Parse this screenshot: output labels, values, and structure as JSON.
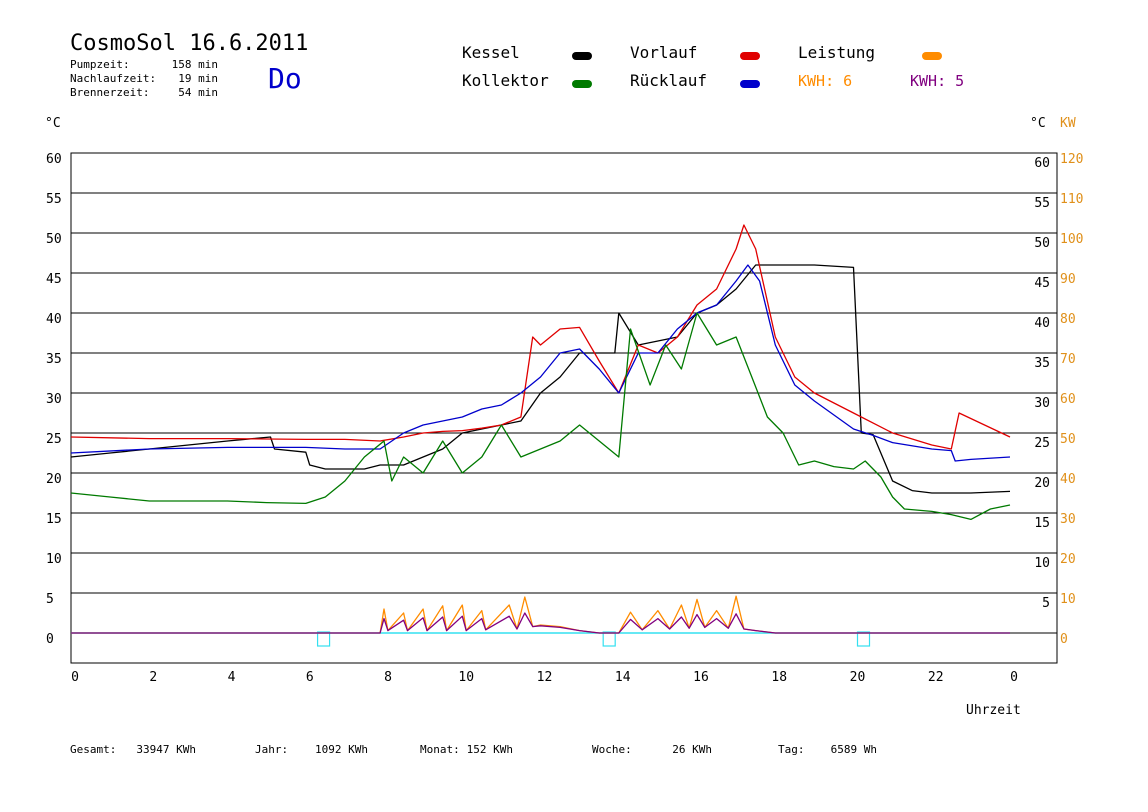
{
  "header": {
    "title": "CosmoSol 16.6.2011",
    "stats": [
      {
        "label": "Pumpzeit:",
        "value": "158 min"
      },
      {
        "label": "Nachlaufzeit:",
        "value": "19 min"
      },
      {
        "label": "Brennerzeit:",
        "value": "54 min"
      }
    ],
    "weekday": "Do"
  },
  "legend": {
    "kessel": "Kessel",
    "kollektor": "Kollektor",
    "vorlauf": "Vorlauf",
    "ruecklauf": "Rücklauf",
    "leistung": "Leistung",
    "kwh1": "KWH: 6",
    "kwh2": "KWH: 5"
  },
  "colors": {
    "kessel": "#000000",
    "kollektor": "#007a00",
    "vorlauf": "#e00000",
    "ruecklauf": "#0000cc",
    "leistung": "#ff8c00",
    "kwh2": "#800080",
    "baseline": "#33e0f0",
    "right_axis": "#e0901a",
    "weekday": "#0000cc"
  },
  "footer": [
    {
      "label": "Gesamt:",
      "value": "33947 KWh"
    },
    {
      "label": "Jahr:",
      "value": "1092 KWh"
    },
    {
      "label": "Monat:",
      "value": "152 KWh"
    },
    {
      "label": "Woche:",
      "value": "26 KWh"
    },
    {
      "label": "Tag:",
      "value": "6589 Wh"
    }
  ],
  "chart_data": {
    "type": "line",
    "y_unit_left": "°C",
    "y_unit_right_temp": "°C",
    "y_unit_right_power": "KW",
    "xlabel": "Uhrzeit",
    "x_ticks": [
      "0",
      "2",
      "4",
      "6",
      "8",
      "10",
      "12",
      "14",
      "16",
      "18",
      "20",
      "22",
      "0"
    ],
    "y_ticks_left": [
      0,
      5,
      10,
      15,
      20,
      25,
      30,
      35,
      40,
      45,
      50,
      55,
      60
    ],
    "y_ticks_right_temp": [
      5,
      10,
      15,
      20,
      25,
      30,
      35,
      40,
      45,
      50,
      55,
      60
    ],
    "y_ticks_right_power": [
      0,
      10,
      20,
      30,
      40,
      50,
      60,
      70,
      80,
      90,
      100,
      110,
      120
    ],
    "xlim": [
      0,
      24
    ],
    "ylim": [
      -4,
      60
    ],
    "grid": true,
    "series": [
      {
        "name": "Kessel",
        "key": "kessel",
        "x": [
          0,
          1,
          2,
          3,
          4,
          5.1,
          5.2,
          6.0,
          6.1,
          6.5,
          7.0,
          7.5,
          7.9,
          8.5,
          9,
          9.5,
          10,
          11,
          11.5,
          12,
          12.5,
          13,
          13.5,
          13.9,
          14,
          14.5,
          15,
          15.5,
          16,
          16.5,
          17,
          17.5,
          18,
          19,
          20,
          20.2,
          20.5,
          21,
          21.5,
          22,
          23,
          24
        ],
        "y": [
          22,
          22.5,
          23,
          23.5,
          24,
          24.5,
          23,
          22.6,
          21,
          20.5,
          20.5,
          20.5,
          21,
          21,
          22,
          23,
          25,
          26,
          26.5,
          30,
          32,
          35,
          35,
          35,
          40,
          36,
          36.5,
          37,
          40,
          41,
          43,
          46,
          46,
          46,
          45.7,
          25,
          24.8,
          19,
          17.8,
          17.5,
          17.5,
          17.7
        ]
      },
      {
        "name": "Vorlauf",
        "key": "vorlauf",
        "x": [
          0,
          2,
          4,
          6,
          7,
          7.9,
          8.5,
          9,
          9.5,
          10,
          10.5,
          11,
          11.5,
          11.8,
          12,
          12.5,
          13,
          13.5,
          14,
          14.5,
          15,
          15.5,
          16,
          16.5,
          17,
          17.2,
          17.5,
          18,
          18.5,
          19,
          20,
          21,
          22,
          22.5,
          22.7,
          24
        ],
        "y": [
          24.5,
          24.3,
          24.3,
          24.2,
          24.2,
          24,
          24.5,
          25,
          25.2,
          25.3,
          25.6,
          26,
          27,
          37,
          36,
          38,
          38.2,
          34,
          30,
          36,
          35,
          37,
          41,
          43,
          48,
          51,
          48,
          37,
          32,
          30,
          27.5,
          25,
          23.5,
          23,
          27.5,
          24.5
        ]
      },
      {
        "name": "Rücklauf",
        "key": "ruecklauf",
        "x": [
          0,
          2,
          4,
          6,
          7,
          7.9,
          8.5,
          9,
          9.5,
          10,
          10.5,
          11,
          11.5,
          12,
          12.5,
          13,
          13.5,
          14,
          14.5,
          15,
          15.5,
          16,
          16.5,
          17,
          17.3,
          17.6,
          18,
          18.5,
          19,
          20,
          20.5,
          21,
          22,
          22.5,
          22.6,
          23,
          24
        ],
        "y": [
          22.5,
          23,
          23.2,
          23.2,
          23,
          23,
          25,
          26,
          26.5,
          27,
          28,
          28.5,
          30,
          32,
          35,
          35.5,
          33,
          30,
          35,
          35,
          38,
          40,
          41,
          44,
          46,
          44,
          36,
          31,
          29,
          25.5,
          24.7,
          23.8,
          23,
          22.8,
          21.5,
          21.7,
          22
        ]
      },
      {
        "name": "Kollektor",
        "key": "kollektor",
        "x": [
          0,
          1,
          2,
          3,
          4,
          5,
          6,
          6.5,
          7,
          7.5,
          8,
          8.2,
          8.5,
          9,
          9.5,
          10,
          10.5,
          11,
          11.5,
          12,
          12.5,
          13,
          13.5,
          14,
          14.3,
          14.8,
          15.2,
          15.6,
          16,
          16.5,
          17,
          17.4,
          17.8,
          18.2,
          18.6,
          19,
          19.5,
          20,
          20.3,
          20.7,
          21,
          21.3,
          22,
          22.5,
          23,
          23.5,
          24
        ],
        "y": [
          17.5,
          17,
          16.5,
          16.5,
          16.5,
          16.3,
          16.2,
          17,
          19,
          22,
          24,
          19,
          22,
          20,
          24,
          20,
          22,
          26,
          22,
          23,
          24,
          26,
          24,
          22,
          38,
          31,
          36,
          33,
          40,
          36,
          37,
          32,
          27,
          25,
          21,
          21.5,
          20.8,
          20.5,
          21.5,
          19.5,
          17,
          15.5,
          15.2,
          14.8,
          14.2,
          15.5,
          16
        ]
      },
      {
        "name": "Leistung",
        "key": "leistung",
        "x": [
          0,
          7.9,
          8,
          8.1,
          8.5,
          8.6,
          9,
          9.1,
          9.5,
          9.6,
          10,
          10.1,
          10.5,
          10.6,
          11.2,
          11.4,
          11.6,
          11.8,
          12,
          12.5,
          13,
          13.5,
          14,
          14.3,
          14.6,
          15,
          15.3,
          15.6,
          15.8,
          16,
          16.2,
          16.5,
          16.8,
          17,
          17.2,
          17.5,
          18,
          24
        ],
        "y": [
          0,
          0,
          3,
          0.3,
          2.5,
          0.3,
          3,
          0.3,
          3.4,
          0.3,
          3.5,
          0.3,
          2.8,
          0.4,
          3.5,
          0.5,
          4.5,
          0.8,
          1,
          0.8,
          0.3,
          0,
          0,
          2.6,
          0.4,
          2.8,
          0.5,
          3.5,
          0.6,
          4.2,
          0.7,
          2.8,
          0.6,
          4.6,
          0.5,
          0.3,
          0,
          0
        ]
      },
      {
        "name": "KWH",
        "key": "kwh2",
        "x": [
          0,
          7.9,
          8,
          8.1,
          8.5,
          8.6,
          9,
          9.1,
          9.5,
          9.6,
          10,
          10.1,
          10.5,
          10.6,
          11.2,
          11.4,
          11.6,
          11.8,
          12,
          12.5,
          13,
          13.5,
          14,
          14.3,
          14.6,
          15,
          15.3,
          15.6,
          15.8,
          16,
          16.2,
          16.5,
          16.8,
          17,
          17.2,
          17.5,
          18,
          24
        ],
        "y": [
          0,
          0,
          1.8,
          0.3,
          1.6,
          0.3,
          1.9,
          0.3,
          2,
          0.3,
          2.1,
          0.3,
          1.8,
          0.4,
          2.1,
          0.5,
          2.5,
          0.8,
          0.9,
          0.7,
          0.3,
          0,
          0,
          1.7,
          0.4,
          1.8,
          0.5,
          2,
          0.6,
          2.3,
          0.7,
          1.8,
          0.6,
          2.4,
          0.5,
          0.3,
          0,
          0
        ]
      }
    ],
    "markers": [
      6.2,
      13.5,
      20
    ]
  }
}
